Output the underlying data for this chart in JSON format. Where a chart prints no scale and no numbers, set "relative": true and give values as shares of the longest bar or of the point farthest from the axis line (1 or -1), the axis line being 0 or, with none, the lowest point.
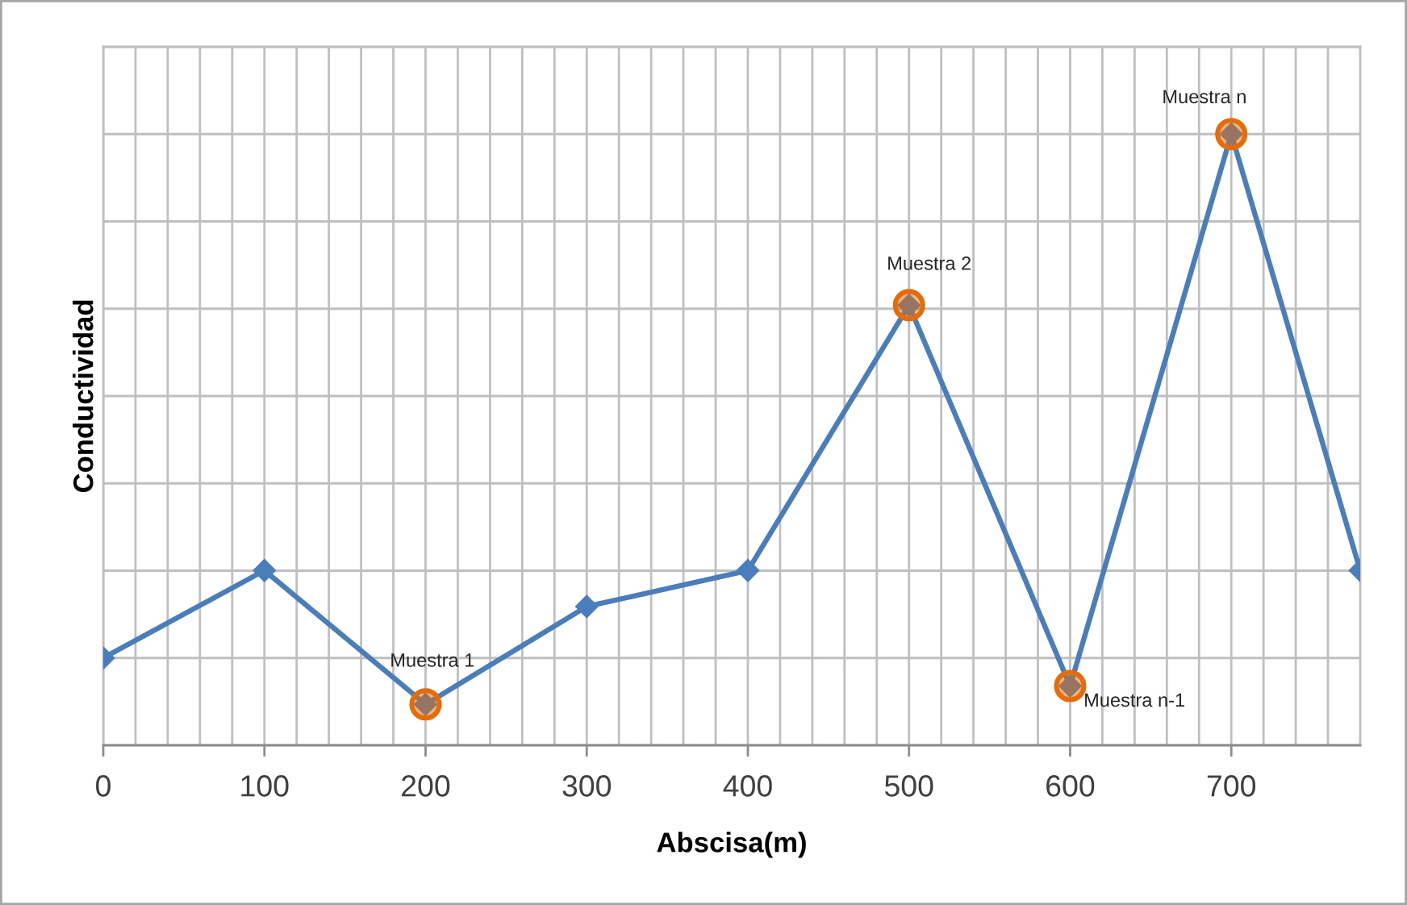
{
  "chart_data": {
    "type": "line",
    "xlabel": "Abscisa(m)",
    "ylabel": "Conductividad",
    "relative": true,
    "grid": true,
    "xlim": [
      0,
      780
    ],
    "xticks": [
      0,
      {
        "value": 20,
        "label": null
      },
      {
        "value": 40,
        "label": null
      },
      {
        "value": 60,
        "label": null
      },
      {
        "value": 80,
        "label": null
      },
      100,
      {
        "value": 120,
        "label": null
      },
      {
        "value": 140,
        "label": null
      },
      {
        "value": 160,
        "label": null
      },
      {
        "value": 180,
        "label": null
      },
      200,
      {
        "value": 220,
        "label": null
      },
      {
        "value": 240,
        "label": null
      },
      {
        "value": 260,
        "label": null
      },
      {
        "value": 280,
        "label": null
      },
      300,
      {
        "value": 320,
        "label": null
      },
      {
        "value": 340,
        "label": null
      },
      {
        "value": 360,
        "label": null
      },
      {
        "value": 380,
        "label": null
      },
      400,
      {
        "value": 420,
        "label": null
      },
      {
        "value": 440,
        "label": null
      },
      {
        "value": 460,
        "label": null
      },
      {
        "value": 480,
        "label": null
      },
      500,
      {
        "value": 520,
        "label": null
      },
      {
        "value": 540,
        "label": null
      },
      {
        "value": 560,
        "label": null
      },
      {
        "value": 580,
        "label": null
      },
      600,
      {
        "value": 620,
        "label": null
      },
      {
        "value": 640,
        "label": null
      },
      {
        "value": 660,
        "label": null
      },
      {
        "value": 680,
        "label": null
      },
      700,
      {
        "value": 720,
        "label": null
      },
      {
        "value": 740,
        "label": null
      },
      {
        "value": 760,
        "label": null
      }
    ],
    "series": [
      {
        "color": "#4a7ebb",
        "marker": "diamond",
        "line_style": "solid",
        "x": [
          0,
          100,
          200,
          300,
          400,
          500,
          600,
          700,
          780
        ],
        "values": [
          0.143,
          0.286,
          0.067,
          0.227,
          0.286,
          0.72,
          0.097,
          1,
          0.286
        ]
      },
      {
        "type": "scatter",
        "color": "#e46c0a",
        "marker": "circle",
        "x": [
          200,
          500,
          600,
          700
        ],
        "values": [
          0.067,
          0.72,
          0.097,
          1
        ]
      }
    ],
    "annotations": [
      {
        "text": "Muestra 1",
        "x": 200,
        "y": 0.067
      },
      {
        "text": "Muestra 2",
        "x": 500,
        "y": 0.72
      },
      {
        "text": "Muestra n-1",
        "x": 600,
        "y": 0.097
      },
      {
        "text": "Muestra n",
        "x": 700,
        "y": 1
      }
    ]
  }
}
